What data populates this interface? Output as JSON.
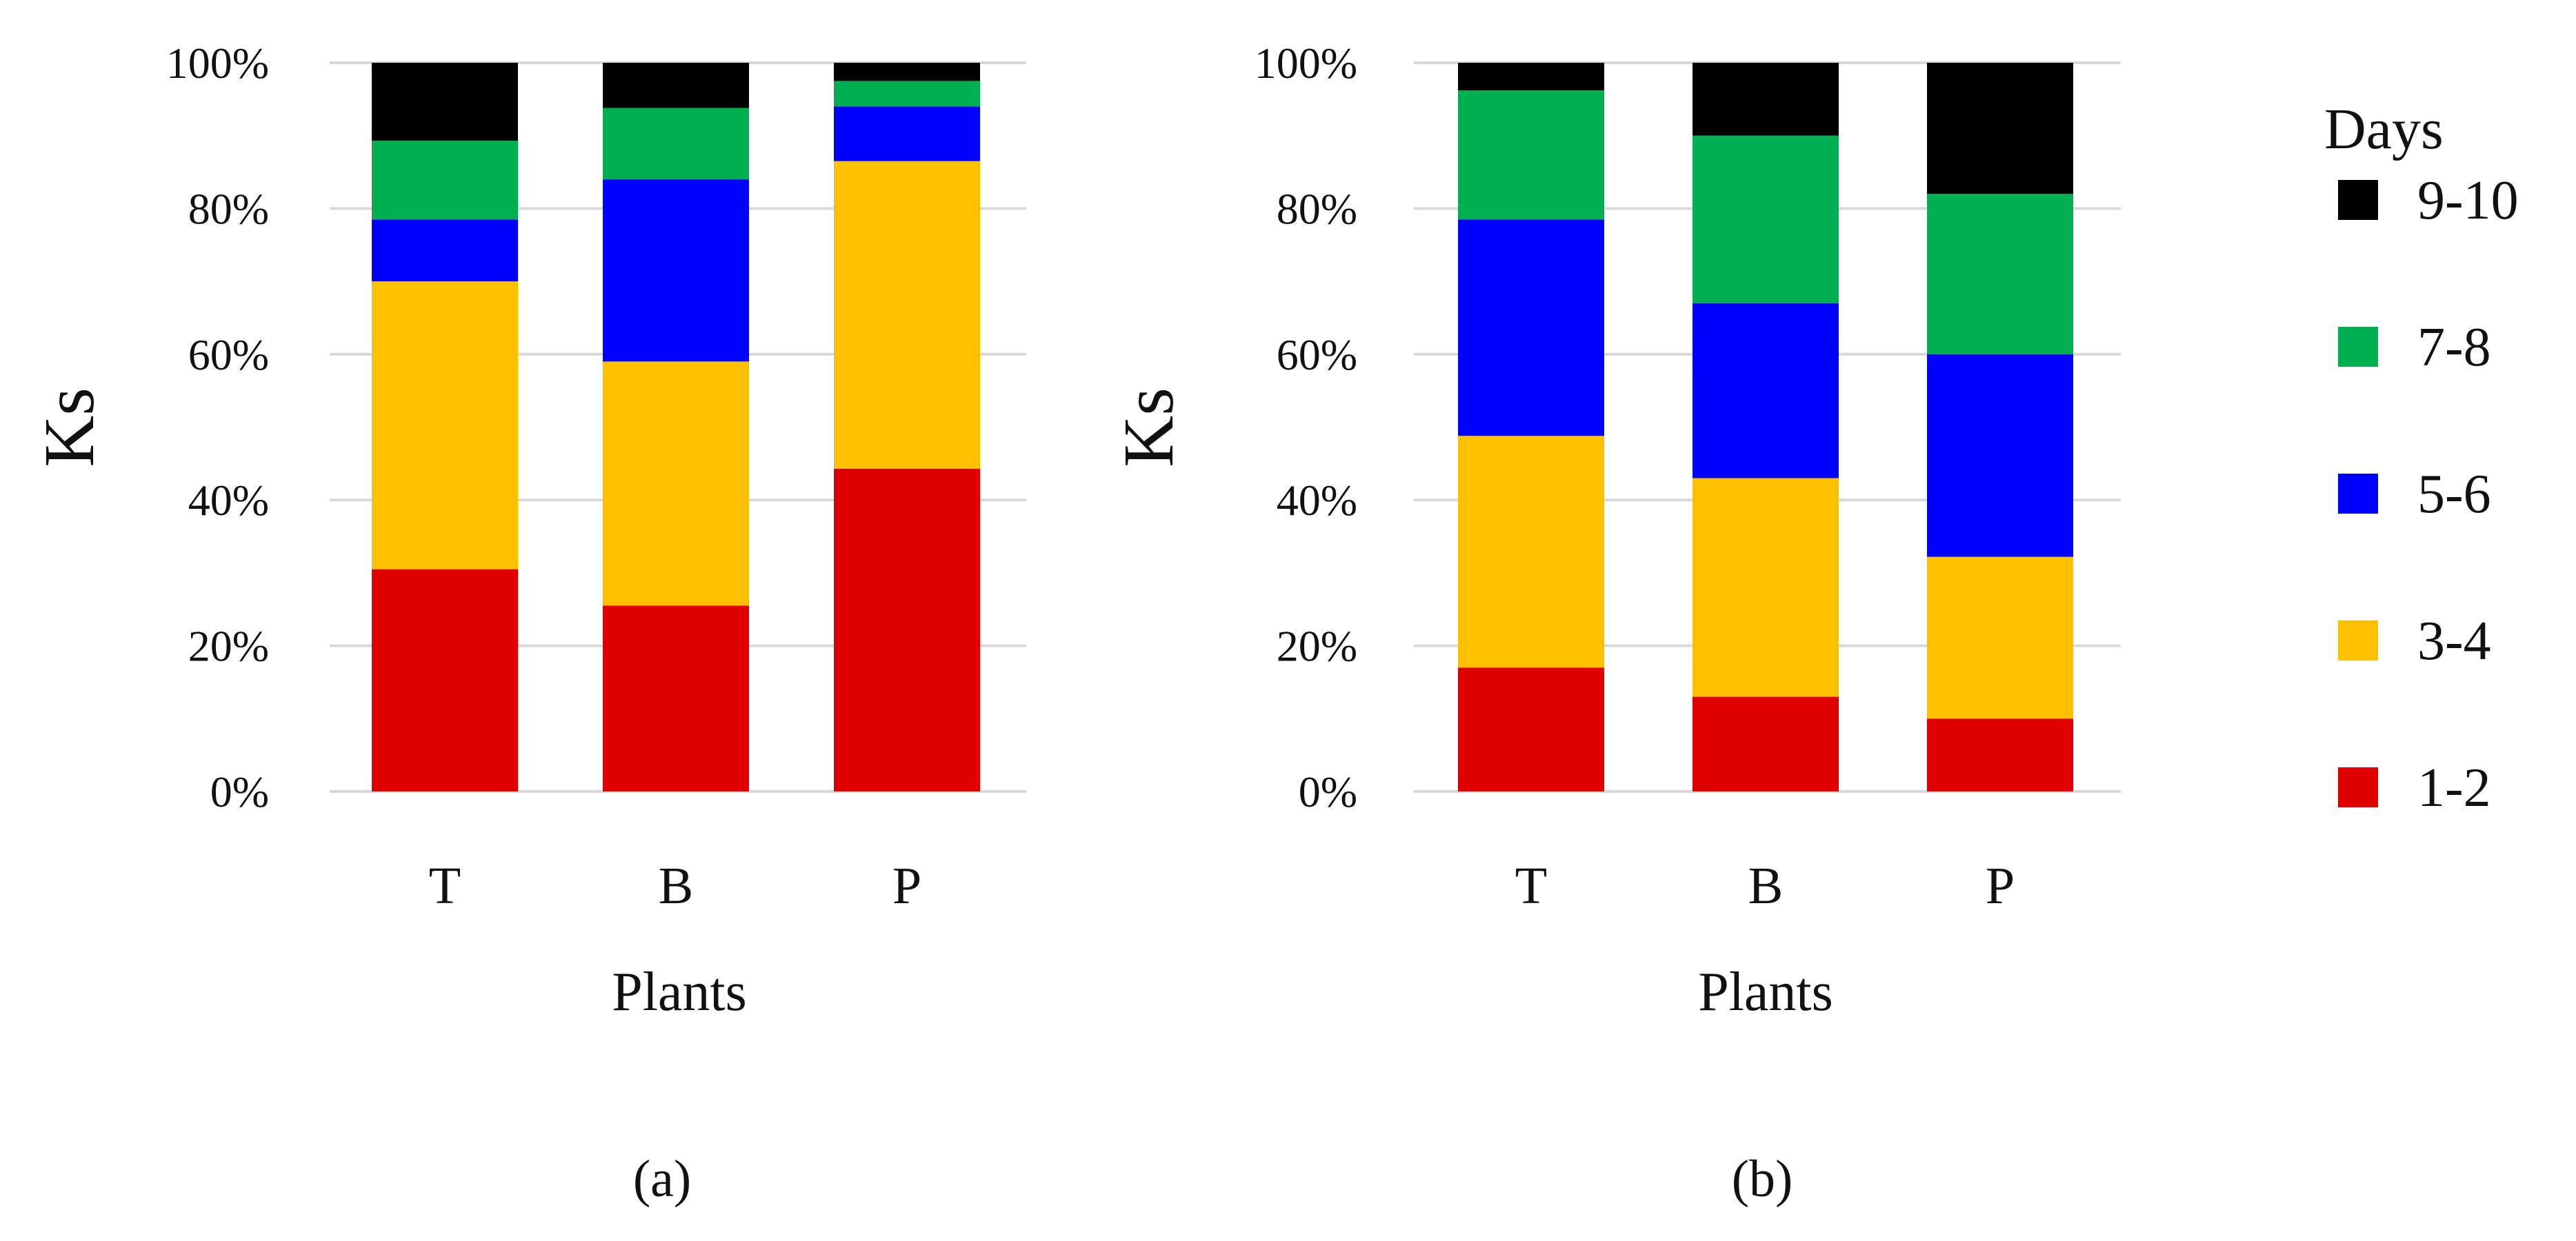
{
  "chart_data": [
    {
      "type": "bar",
      "stacked": true,
      "caption": "(a)",
      "xlabel": "Plants",
      "ylabel": "Ks",
      "categories": [
        "T",
        "B",
        "P"
      ],
      "ylim": [
        0,
        100
      ],
      "yticks": [
        "0%",
        "20%",
        "40%",
        "60%",
        "80%",
        "100%"
      ],
      "grid": true,
      "series": [
        {
          "name": "1-2",
          "color": "#e00000",
          "values": [
            30.5,
            25.5,
            44.3
          ]
        },
        {
          "name": "3-4",
          "color": "#ffc000",
          "values": [
            39.5,
            33.5,
            42.2
          ]
        },
        {
          "name": "5-6",
          "color": "#0000ff",
          "values": [
            8.5,
            25.0,
            7.5
          ]
        },
        {
          "name": "7-8",
          "color": "#00b050",
          "values": [
            10.8,
            9.8,
            3.5
          ]
        },
        {
          "name": "9-10",
          "color": "#000000",
          "values": [
            10.7,
            6.2,
            2.5
          ]
        }
      ]
    },
    {
      "type": "bar",
      "stacked": true,
      "caption": "(b)",
      "xlabel": "Plants",
      "ylabel": "Ks",
      "categories": [
        "T",
        "B",
        "P"
      ],
      "ylim": [
        0,
        100
      ],
      "yticks": [
        "0%",
        "20%",
        "40%",
        "60%",
        "80%",
        "100%"
      ],
      "grid": true,
      "series": [
        {
          "name": "1-2",
          "color": "#e00000",
          "values": [
            17.0,
            13.0,
            10.0
          ]
        },
        {
          "name": "3-4",
          "color": "#ffc000",
          "values": [
            31.8,
            30.0,
            22.2
          ]
        },
        {
          "name": "5-6",
          "color": "#0000ff",
          "values": [
            29.7,
            24.0,
            27.8
          ]
        },
        {
          "name": "7-8",
          "color": "#00b050",
          "values": [
            17.7,
            23.0,
            22.0
          ]
        },
        {
          "name": "9-10",
          "color": "#000000",
          "values": [
            3.8,
            10.0,
            18.0
          ]
        }
      ]
    }
  ],
  "legend": {
    "title": "Days",
    "placement": "right",
    "items": [
      {
        "label": "9-10",
        "color": "#000000"
      },
      {
        "label": "7-8",
        "color": "#00b050"
      },
      {
        "label": "5-6",
        "color": "#0000ff"
      },
      {
        "label": "3-4",
        "color": "#ffc000"
      },
      {
        "label": "1-2",
        "color": "#e00000"
      }
    ]
  }
}
